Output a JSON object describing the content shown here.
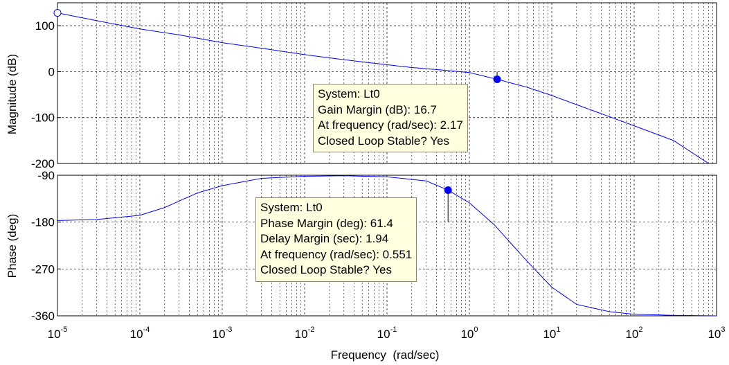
{
  "chart_data": {
    "type": "line",
    "xlabel": "Frequency  (rad/sec)",
    "x_scale": "log",
    "xlim": [
      1e-05,
      1000
    ],
    "x_ticks": [
      {
        "base": "10",
        "exp": "-5"
      },
      {
        "base": "10",
        "exp": "-4"
      },
      {
        "base": "10",
        "exp": "-3"
      },
      {
        "base": "10",
        "exp": "-2"
      },
      {
        "base": "10",
        "exp": "-1"
      },
      {
        "base": "10",
        "exp": "0"
      },
      {
        "base": "10",
        "exp": "1"
      },
      {
        "base": "10",
        "exp": "2"
      },
      {
        "base": "10",
        "exp": "3"
      }
    ],
    "grid": true,
    "line_color": "#0000ff",
    "marker_color": "#0000ff",
    "magnitude": {
      "ylabel": "Magnitude (dB)",
      "ylim": [
        -200,
        150
      ],
      "y_ticks": [
        {
          "value": 100,
          "label": "100"
        },
        {
          "value": 0,
          "label": "0"
        },
        {
          "value": -100,
          "label": "-100"
        },
        {
          "value": -200,
          "label": "-200"
        }
      ],
      "series": {
        "x": [
          1e-05,
          3e-05,
          0.0001,
          0.0003,
          0.001,
          0.003,
          0.01,
          0.03,
          0.1,
          0.2,
          0.5,
          1,
          2.17,
          5,
          10,
          20,
          50,
          100,
          300,
          800
        ],
        "y": [
          128,
          111,
          93,
          80,
          63,
          51,
          37,
          26,
          15,
          9,
          3,
          -2,
          -16.7,
          -34,
          -52,
          -72,
          -98,
          -118,
          -150,
          -200
        ]
      },
      "start_marker": {
        "x": 1e-05,
        "y": 128
      },
      "marker": {
        "x": 2.17,
        "y": -16.7
      },
      "datatip": {
        "system": "System: Lt0",
        "gain_margin": "Gain Margin (dB): 16.7",
        "frequency": "At frequency (rad/sec): 2.17",
        "stable": "Closed Loop Stable? Yes"
      }
    },
    "phase": {
      "ylabel": "Phase (deg)",
      "ylim": [
        -360,
        -90
      ],
      "y_ticks": [
        {
          "value": -90,
          "label": "-90"
        },
        {
          "value": -180,
          "label": "-180"
        },
        {
          "value": -270,
          "label": "-270"
        },
        {
          "value": -360,
          "label": "-360"
        }
      ],
      "series": {
        "x": [
          1e-05,
          3e-05,
          0.0001,
          0.0002,
          0.0005,
          0.001,
          0.003,
          0.01,
          0.03,
          0.1,
          0.3,
          0.551,
          1,
          2,
          5,
          10,
          20,
          50,
          100,
          300,
          1000
        ],
        "y": [
          -177,
          -175,
          -167,
          -152,
          -124,
          -110,
          -96,
          -92,
          -91,
          -93,
          -101,
          -118.6,
          -143,
          -185,
          -255,
          -305,
          -338,
          -352,
          -357,
          -359,
          -360
        ]
      },
      "marker": {
        "x": 0.551,
        "y": -118.6
      },
      "datatip": {
        "system": "System: Lt0",
        "phase_margin": "Phase Margin (deg): 61.4",
        "delay_margin": "Delay Margin (sec): 1.94",
        "frequency": "At frequency (rad/sec): 0.551",
        "stable": "Closed Loop Stable? Yes"
      }
    }
  }
}
